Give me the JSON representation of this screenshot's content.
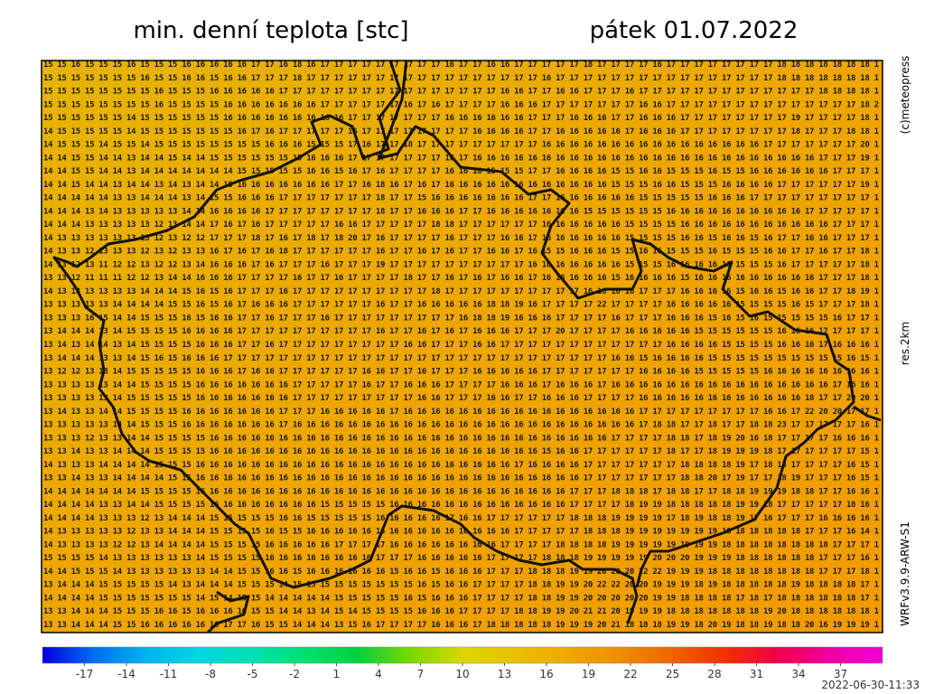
{
  "header": {
    "title": "min. denní teplota [stc]",
    "date": "pátek 01.07.2022"
  },
  "side": {
    "copyright": "(c)meteopress",
    "resolution": "res.2km",
    "model": "WRFv3.9.9-ARW-S1"
  },
  "timestamp": "2022-06-30-11:33",
  "map": {
    "background": [
      "#e6b400",
      "#eea600",
      "#f29a00"
    ],
    "rows": [
      "15 15 16 15 15 15 16 15 15 15 16 16 16 16 16 17 17 16 18 16 17 17 17 17 17 17 17 17 17 16 17 17 16 16 17 17 17 17 17 18 17 17 17 17 16 17 17 17 17 17 17 17 17 18 18 18 18 18 18 18 1",
      "15 15 15 15 15 15 15 16 15 15 16 16 15 16 16 17 17 17 18 17 17 17 17 17 17 17 17 17 17 17 17 17 17 17 17 17 16 17 17 17 17 17 17 17 17 17 17 17 17 17 17 17 17 18 18 18 18 18 18 18 1",
      "15 15 15 15 15 15 15 15 16 15 15 15 16 16 16 16 16 17 17 17 17 17 17 17 17 17 17 17 17 17 17 17 17 16 16 17 17 16 16 17 17 17 16 17 17 17 17 17 17 17 17 17 17 17 17 17 18 18 18 18 1",
      "15 15 15 15 15 15 15 15 16 15 15 15 15 16 16 16 16 16 16 16 17 17 17 17 17 17 16 17 16 17 17 17 17 16 16 16 17 17 17 17 17 17 17 16 16 17 17 17 17 17 17 17 17 17 17 17 17 17 17 18 2",
      "15 15 15 15 15 15 14 15 15 15 15 15 15 16 16 16 16 16 16 16 16 16 17 17 17 17 17 17 17 16 16 16 16 16 16 17 17 17 16 16 16 17 17 16 16 16 17 17 17 17 17 17 17 17 19 17 17 17 17 18 1",
      "14 15 15 15 15 15 14 15 15 15 15 15 15 15 16 17 16 17 17 17 17 17 16 17 17 17 17 17 17 17 17 16 16 16 16 17 17 16 16 16 16 16 17 16 16 16 17 17 17 17 17 17 17 17 18 17 17 17 18 18 1",
      "14 15 15 15 14 15 15 14 15 15 15 15 15 15 15 15 16 16 16 15 15 15 17 16 17 17 18 17 17 17 17 17 17 17 17 17 16 16 16 16 16 16 16 16 16 16 16 16 16 16 16 16 17 17 17 17 17 17 17 20 1",
      "14 14 15 15 14 14 13 14 14 15 14 14 15 15 15 15 15 15 15 16 16 16 17 17 17 17 17 17 17 16 17 16 16 16 16 16 16 16 16 16 16 16 16 16 16 16 16 16 16 16 16 16 16 16 16 16 17 17 17 19 1",
      "14 14 15 15 14 14 13 14 14 14 14 14 14 14 15 15 15 15 15 16 16 15 16 17 16 17 17 17 17 16 16 16 15 15 15 17 17 16 16 16 16 15 15 16 16 15 15 15 16 15 15 16 16 16 16 16 16 17 17 17 1",
      "14 14 15 14 14 13 14 14 13 14 13 14 14 15 16 16 16 16 16 16 16 17 17 16 18 16 17 16 17 16 16 16 16 16 16 16 16 16 16 16 16 15 15 15 16 16 15 15 15 16 16 16 16 17 17 17 17 17 17 19 1",
      "14 14 14 14 14 13 13 14 14 14 13 14 15 15 16 16 16 17 17 17 17 17 17 17 18 17 17 15 16 16 16 16 16 16 16 17 17 16 16 16 16 16 16 15 15 15 15 15 16 16 16 17 17 17 17 17 17 17 17 17 1",
      "14 14 14 13 14 13 13 13 13 13 14 14 16 16 16 16 17 17 17 17 17 17 17 17 18 17 17 16 16 16 17 17 16 16 16 16 16 16 16 15 15 15 15 15 15 16 16 16 16 16 16 16 16 16 16 17 17 17 17 17 1",
      "14 14 14 13 13 13 13 13 12 13 14 14 17 16 17 16 17 17 17 17 17 16 16 17 17 17 17 17 18 18 17 17 17 17 17 17 16 16 16 16 16 16 15 15 15 15 16 16 16 16 16 16 16 16 16 16 16 17 17 17 1",
      "14 13 13 13 13 13 13 13 12 13 12 12 17 17 17 18 17 16 17 18 17 18 20 17 16 17 17 17 17 16 17 17 17 16 16 17 16 16 16 16 16 16 15 15 15 15 16 16 15 16 16 15 16 17 17 16 16 17 17 17 1",
      "14 13 13 12 13 13 13 12 13 12 13 13 16 17 16 17 16 18 17 17 17 17 17 17 16 17 17 16 17 16 17 17 16 16 17 16 15 15 16 16 16 15 15 16 16 15 15 15 16 15 15 15 16 16 17 17 16 17 17 18 1",
      "14 13 12 13 11 12 12 13 12 12 13 14 16 16 16 17 16 17 17 17 16 17 17 17 19 17 17 17 17 17 17 17 17 17 17 16 16 16 16 16 16 16 15 15 15 16 16 16 16 16 15 15 15 16 17 17 17 17 17 18 1",
      "13 13 12 11 11 11 12 12 13 14 14 16 16 16 17 17 17 17 16 17 17 16 17 17 17 17 18 17 17 16 17 16 17 16 16 17 16 16 16 16 16 15 16 16 16 16 15 16 16 16 16 16 16 16 16 16 17 17 17 18 1",
      "14 13 13 13 13 13 13 14 14 14 15 16 15 16 17 17 17 16 17 17 17 17 17 17 17 17 17 17 18 17 17 17 17 17 17 17 17 17 17 16 16 16 16 17 17 17 16 16 16 16 15 16 16 15 16 16 17 17 18 19 1",
      "13 13 13 13 13 14 14 14 14 15 15 16 15 16 17 16 16 16 17 17 17 17 17 17 16 17 17 16 16 16 16 16 18 18 19 16 17 17 17 17 22 17 17 17 17 16 16 16 16 16 15 15 15 15 16 15 17 17 17 18 1",
      "13 13 13 16 15 14 14 15 15 15 16 15 16 16 17 17 16 17 17 17 16 17 17 17 17 17 17 17 17 17 16 18 18 19 16 16 16 17 17 17 17 16 17 17 17 16 16 16 15 16 15 16 15 15 15 15 15 16 17 17 1",
      "13 14 14 14 13 14 15 15 15 15 16 16 16 16 17 17 17 17 17 17 17 17 17 17 16 17 17 16 17 16 17 16 16 16 17 17 17 20 17 17 17 17 16 16 16 16 16 15 15 15 15 15 15 16 16 16 17 17 17 17 1",
      "13 14 13 14 14 13 14 15 15 15 15 16 16 16 17 17 16 17 17 17 17 17 17 17 17 17 16 16 17 17 17 16 16 17 17 17 17 17 17 17 17 17 17 17 17 16 16 16 16 15 15 15 15 16 16 16 17 16 16 16 1",
      "13 14 14 14 13 13 14 15 16 15 16 16 16 17 17 17 17 17 17 17 17 17 17 17 17 17 17 17 17 17 17 17 17 17 17 17 17 17 17 17 17 16 16 15 16 16 16 16 15 15 15 15 15 15 15 15 15 15 16 15 1",
      "13 12 12 13 13 14 15 15 15 15 15 16 16 16 17 16 16 17 17 17 17 17 17 16 16 17 17 16 17 17 17 16 16 16 16 16 17 17 17 17 17 17 17 16 16 16 16 15 15 15 15 15 16 16 16 16 16 16 16 16 1",
      "13 13 13 13 13 14 14 15 15 15 15 16 16 16 16 16 16 16 17 17 17 17 17 16 17 17 16 16 16 17 17 17 17 16 16 16 17 16 16 16 17 16 16 16 16 16 16 16 16 16 16 16 16 16 16 16 16 17 16 16 1",
      "13 13 13 13 13 14 15 15 15 15 15 16 16 16 16 16 16 16 17 17 17 17 17 17 17 17 17 16 16 17 17 17 16 16 17 17 16 16 16 17 17 17 17 16 16 16 16 16 16 16 16 16 16 16 16 18 17 17 20 20 1",
      "13 14 13 13 14 14 15 15 15 15 16 16 16 16 16 16 16 17 17 17 16 16 16 16 16 17 16 16 16 16 16 16 16 16 16 16 16 16 16 16 16 16 16 17 17 17 17 17 17 17 17 17 16 16 17 22 20 20 17 17 1",
      "13 13 13 13 13 14 14 15 15 15 16 16 16 16 16 16 16 17 16 16 16 16 16 16 16 16 16 16 16 16 16 16 16 16 16 16 16 16 16 16 16 16 16 17 18 18 17 17 18 17 17 18 18 23 17 17 17 17 17 16 1",
      "13 13 13 12 13 13 14 14 15 15 15 15 16 16 16 16 16 16 16 16 16 16 16 16 16 16 16 16 16 16 16 16 16 16 16 16 16 16 16 16 16 17 17 17 17 18 18 17 18 19 20 16 18 17 17 17 17 16 16 16 1",
      "13 13 14 13 13 14 14 14 15 15 15 15 16 16 16 16 16 16 16 16 16 16 16 16 16 16 16 16 16 16 16 16 16 16 16 16 15 16 16 17 17 17 17 17 17 18 17 17 18 19 19 19 18 17 17 17 17 17 17 15 1",
      "14 13 13 13 14 14 14 14 15 15 15 16 16 16 16 16 16 16 16 16 16 16 16 16 16 16 16 16 16 16 16 16 16 16 17 16 16 16 16 17 17 17 17 17 17 17 18 18 18 18 19 17 18 18 17 17 17 17 16 15 1",
      "13 13 14 13 13 14 14 14 14 15 15 16 16 16 16 16 16 16 16 16 16 16 16 16 16 16 16 16 16 16 16 16 16 16 16 16 16 16 16 17 17 17 17 17 17 17 18 18 20 17 19 17 17 18 19 17 17 17 16 15 1",
      "14 14 14 14 14 14 14 15 15 15 15 16 16 16 16 16 16 16 16 16 16 16 16 16 16 16 16 16 16 16 16 16 16 16 16 16 16 16 17 17 17 18 18 18 17 18 18 17 17 18 18 19 19 19 18 18 17 17 16 16 1",
      "14 14 14 14 13 13 14 14 15 15 15 15 16 16 16 16 16 16 16 16 15 15 15 15 15 16 16 16 16 16 16 16 16 16 16 16 16 16 17 17 17 17 18 19 19 18 18 18 18 18 19 19 18 17 17 17 17 17 18 16 1",
      "14 14 14 14 13 13 13 12 13 14 14 14 15 15 15 15 15 16 16 15 15 15 15 15 16 16 16 16 16 17 16 16 17 17 17 17 17 17 18 18 18 19 19 19 19 17 18 19 18 18 19 17 16 17 17 17 16 16 16 16 1",
      "14 13 13 13 13 13 12 13 13 14 14 14 15 15 15 15 16 15 15 16 16 16 16 16 16 16 16 16 16 16 16 16 16 16 17 17 17 17 17 18 18 18 19 19 19 19 19 19 19 18 18 18 18 18 18 17 17 17 16 14 1",
      "14 13 13 13 13 12 12 13 14 14 14 14 15 15 15 15 16 16 16 16 16 17 17 17 17 16 16 16 16 16 16 16 16 17 17 17 17 18 18 18 18 19 19 19 19 19 19 19 19 18 18 18 18 18 18 18 18 17 17 17 1",
      "15 15 15 15 14 13 13 13 13 13 13 14 15 15 15 15 16 16 16 16 16 16 16 16 17 17 17 16 16 16 16 16 17 17 17 17 18 18 18 19 19 19 19 19 20 20 20 19 19 19 18 18 18 18 18 18 17 17 17 16 1",
      "14 14 15 15 15 14 13 13 13 13 13 13 14 14 15 15 16 16 15 16 16 16 16 16 16 15 16 16 15 16 16 16 17 17 17 18 18 18 19 19 20 20 20 22 22 19 19 19 18 18 18 18 18 18 18 18 17 17 17 18 1",
      "13 14 14 14 15 15 15 15 15 14 13 14 14 14 15 15 15 14 15 15 15 15 15 15 15 15 15 16 15 16 16 17 17 17 17 18 18 19 19 20 22 22 20 20 19 19 19 18 19 18 18 18 18 18 19 18 18 18 18 17 1",
      "14 14 14 14 15 15 15 15 15 15 15 14 15 14 15 15 14 14 14 14 14 15 15 15 15 15 16 15 16 16 16 17 17 17 17 18 18 19 19 20 20 20 20 20 19 19 18 18 18 18 17 18 17 18 18 18 18 18 18 17 1",
      "13 13 14 14 14 15 15 15 16 16 15 16 16 16 16 15 15 14 14 13 14 15 14 15 15 15 15 16 16 16 17 17 17 17 18 18 19 19 20 21 21 20 19 19 19 18 18 18 18 18 18 18 19 20 18 18 18 18 18 18 1",
      "13 13 14 14 14 15 15 16 16 16 16 16 16 17 17 16 15 15 14 14 14 13 15 16 17 17 17 17 16 16 16 17 18 18 18 18 18 19 19 19 20 21 18 18 18 19 19 18 20 19 18 18 19 18 18 20 16 19 19 19 1"
    ]
  },
  "colorbar": {
    "lim": [
      -20,
      40
    ],
    "ticks": [
      -17,
      -14,
      -11,
      -8,
      -5,
      -2,
      1,
      4,
      7,
      10,
      13,
      16,
      19,
      22,
      25,
      28,
      31,
      34,
      37
    ],
    "colors": [
      "#0000e0",
      "#0070f0",
      "#00b4f0",
      "#00d8e0",
      "#00e0b0",
      "#00e070",
      "#00d040",
      "#7ad800",
      "#d8d800",
      "#e8c000",
      "#f0a800",
      "#f08c00",
      "#f06400",
      "#f03000",
      "#f0004a",
      "#f000a0",
      "#f000d8"
    ]
  }
}
